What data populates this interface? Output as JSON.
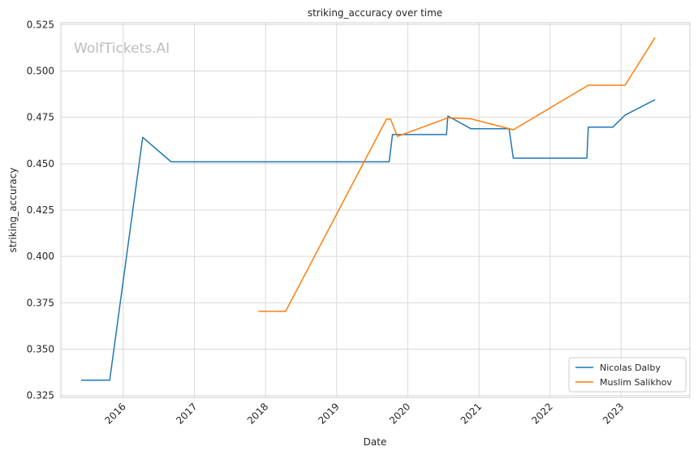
{
  "chart_data": {
    "type": "line",
    "title": "striking_accuracy over time",
    "xlabel": "Date",
    "ylabel": "striking_accuracy",
    "watermark": "WolfTickets.AI",
    "x_ticks": [
      "2016",
      "2017",
      "2018",
      "2019",
      "2020",
      "2021",
      "2022",
      "2023"
    ],
    "y_ticks": [
      "0.325",
      "0.350",
      "0.375",
      "0.400",
      "0.425",
      "0.450",
      "0.475",
      "0.500",
      "0.525"
    ],
    "xlim": [
      "2015-02-15",
      "2023-12-20"
    ],
    "ylim": [
      0.324,
      0.526
    ],
    "grid": true,
    "legend_position": "lower-right",
    "series": [
      {
        "name": "Nicolas Dalby",
        "color": "#1f77b4",
        "points": [
          {
            "x": "2015-05-30",
            "y": 0.3333
          },
          {
            "x": "2015-10-24",
            "y": 0.3333
          },
          {
            "x": "2016-04-10",
            "y": 0.4642
          },
          {
            "x": "2016-09-03",
            "y": 0.451
          },
          {
            "x": "2019-09-28",
            "y": 0.451
          },
          {
            "x": "2019-10-15",
            "y": 0.4657
          },
          {
            "x": "2020-07-18",
            "y": 0.4657
          },
          {
            "x": "2020-07-25",
            "y": 0.4757
          },
          {
            "x": "2020-11-21",
            "y": 0.4688
          },
          {
            "x": "2021-06-05",
            "y": 0.4688
          },
          {
            "x": "2021-06-26",
            "y": 0.453
          },
          {
            "x": "2022-07-09",
            "y": 0.453
          },
          {
            "x": "2022-07-16",
            "y": 0.4697
          },
          {
            "x": "2022-11-19",
            "y": 0.4697
          },
          {
            "x": "2023-01-21",
            "y": 0.4762
          },
          {
            "x": "2023-06-24",
            "y": 0.4845
          }
        ]
      },
      {
        "name": "Muslim Salikhov",
        "color": "#ff7f0e",
        "points": [
          {
            "x": "2017-11-25",
            "y": 0.3704
          },
          {
            "x": "2018-04-14",
            "y": 0.3704
          },
          {
            "x": "2019-09-14",
            "y": 0.474
          },
          {
            "x": "2019-10-05",
            "y": 0.474
          },
          {
            "x": "2019-11-09",
            "y": 0.4647
          },
          {
            "x": "2020-07-25",
            "y": 0.4747
          },
          {
            "x": "2020-11-21",
            "y": 0.4742
          },
          {
            "x": "2021-06-26",
            "y": 0.4683
          },
          {
            "x": "2022-07-16",
            "y": 0.4923
          },
          {
            "x": "2023-01-21",
            "y": 0.4923
          },
          {
            "x": "2023-06-24",
            "y": 0.518
          }
        ]
      }
    ]
  }
}
